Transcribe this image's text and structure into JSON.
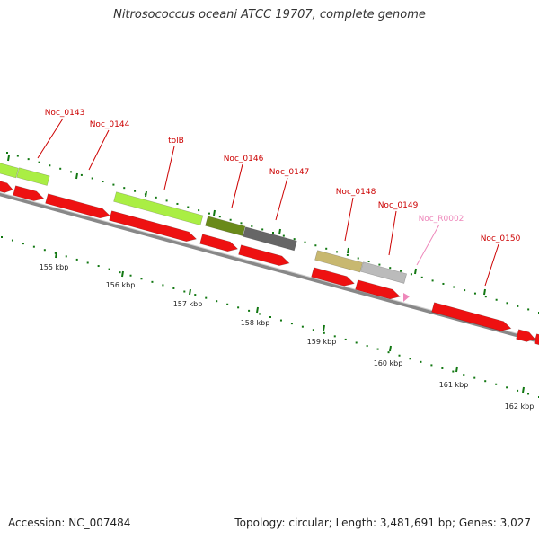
{
  "title": "Nitrosococcus oceani ATCC 19707, complete genome",
  "footer": {
    "accession": "Accession: NC_007484",
    "summary": "Topology: circular; Length: 3,481,691 bp; Genes: 3,027"
  },
  "colors": {
    "gene_cds": "#ee1111",
    "gene_cds_light": "#aaee44",
    "gene_dark_olive": "#6a8a1a",
    "gene_dark_gray": "#666666",
    "gene_tan": "#c8b870",
    "gene_light_gray": "#bbbbbb",
    "rna": "#ee88bb",
    "label": "#cc0000",
    "label_rna": "#ee88bb",
    "tick": "#117711",
    "backbone": "#888888"
  },
  "scale": {
    "labels": [
      "155 kbp",
      "156 kbp",
      "157 kbp",
      "158 kbp",
      "159 kbp",
      "160 kbp",
      "161 kbp",
      "162 kbp"
    ]
  },
  "gene_labels": [
    "Noc_0143",
    "Noc_0144",
    "tolB",
    "Noc_0146",
    "Noc_0147",
    "Noc_0148",
    "Noc_0149",
    "Noc_R0002",
    "Noc_0150"
  ],
  "icons": {
    "backbone": "genome-backbone-line",
    "arrow": "gene-arrow-shape"
  }
}
